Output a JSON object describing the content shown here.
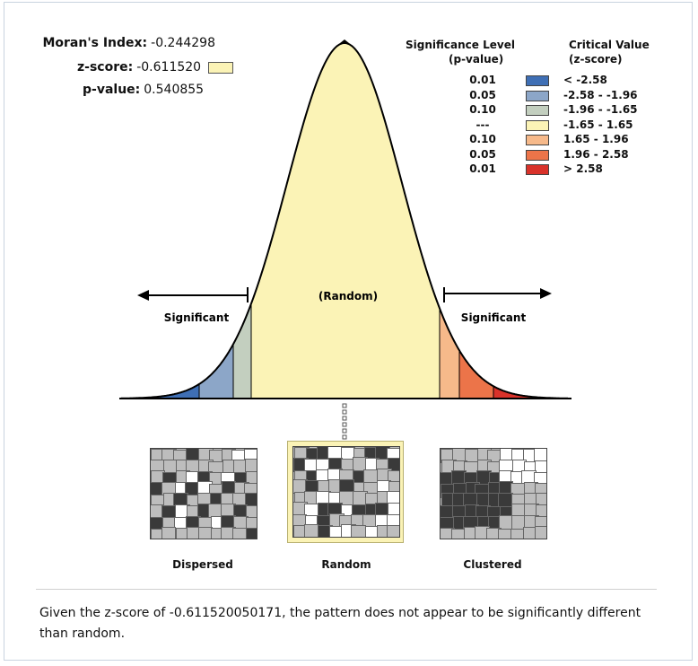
{
  "stats": {
    "morans_index_label": "Moran's Index:",
    "morans_index_value": "-0.244298",
    "zscore_label": "z-score:",
    "zscore_value": "-0.611520",
    "pvalue_label": "p-value:",
    "pvalue_value": "0.540855"
  },
  "legend": {
    "sig_header_1": "Significance Level",
    "sig_header_2": "(p-value)",
    "crit_header_1": "Critical Value",
    "crit_header_2": "(z-score)",
    "rows": [
      {
        "p": "0.01",
        "z": "< -2.58",
        "color": "#3f6fb5"
      },
      {
        "p": "0.05",
        "z": "-2.58 - -1.96",
        "color": "#8ca6c8"
      },
      {
        "p": "0.10",
        "z": "-1.96 - -1.65",
        "color": "#c3cfbf"
      },
      {
        "p": "---",
        "z": "-1.65 - 1.65",
        "color": "#fbf3b6"
      },
      {
        "p": "0.10",
        "z": "1.65 - 1.96",
        "color": "#f6b98a"
      },
      {
        "p": "0.05",
        "z": "1.96 - 2.58",
        "color": "#ec7449"
      },
      {
        "p": "0.01",
        "z": "> 2.58",
        "color": "#d9322a"
      }
    ]
  },
  "curve": {
    "random_label": "(Random)",
    "left_significant": "Significant",
    "right_significant": "Significant"
  },
  "maps": {
    "dispersed_label": "Dispersed",
    "random_label": "Random",
    "clustered_label": "Clustered",
    "selected": "Random"
  },
  "message": "Given the z-score of -0.611520050171, the pattern does not appear to be significantly different than random."
}
